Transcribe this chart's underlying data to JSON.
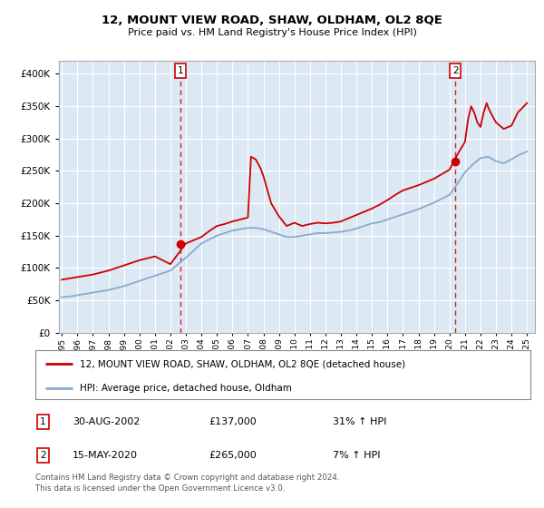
{
  "title": "12, MOUNT VIEW ROAD, SHAW, OLDHAM, OL2 8QE",
  "subtitle": "Price paid vs. HM Land Registry's House Price Index (HPI)",
  "property_line_color": "#cc0000",
  "hpi_line_color": "#88aacc",
  "plot_bg_color": "#dce9f5",
  "ylim": [
    0,
    420000
  ],
  "yticks": [
    0,
    50000,
    100000,
    150000,
    200000,
    250000,
    300000,
    350000,
    400000
  ],
  "sale1_date": "30-AUG-2002",
  "sale1_price": 137000,
  "sale1_hpi_change": "31% ↑ HPI",
  "sale1_x": 2002.66,
  "sale2_date": "15-MAY-2020",
  "sale2_price": 265000,
  "sale2_hpi_change": "7% ↑ HPI",
  "sale2_x": 2020.37,
  "legend_line1": "12, MOUNT VIEW ROAD, SHAW, OLDHAM, OL2 8QE (detached house)",
  "legend_line2": "HPI: Average price, detached house, Oldham",
  "footnote": "Contains HM Land Registry data © Crown copyright and database right 2024.\nThis data is licensed under the Open Government Licence v3.0.",
  "hpi_years": [
    1995,
    1995.5,
    1996,
    1996.5,
    1997,
    1997.5,
    1998,
    1998.5,
    1999,
    1999.5,
    2000,
    2000.5,
    2001,
    2001.5,
    2002,
    2002.5,
    2003,
    2003.5,
    2004,
    2004.5,
    2005,
    2005.5,
    2006,
    2006.5,
    2007,
    2007.5,
    2008,
    2008.5,
    2009,
    2009.5,
    2010,
    2010.5,
    2011,
    2011.5,
    2012,
    2012.5,
    2013,
    2013.5,
    2014,
    2014.5,
    2015,
    2015.5,
    2016,
    2016.5,
    2017,
    2017.5,
    2018,
    2018.5,
    2019,
    2019.5,
    2020,
    2020.5,
    2021,
    2021.5,
    2022,
    2022.5,
    2023,
    2023.5,
    2024,
    2024.5,
    2025
  ],
  "hpi_values": [
    55000,
    56000,
    58000,
    60000,
    62000,
    64000,
    66000,
    69000,
    72000,
    76000,
    80000,
    84000,
    88000,
    92000,
    96000,
    106000,
    116000,
    127000,
    138000,
    144000,
    150000,
    154000,
    158000,
    160000,
    162000,
    162000,
    160000,
    156000,
    152000,
    148000,
    148000,
    150000,
    152000,
    154000,
    154000,
    155000,
    156000,
    158000,
    161000,
    165000,
    169000,
    171000,
    175000,
    179000,
    183000,
    187000,
    191000,
    196000,
    201000,
    207000,
    213000,
    230000,
    248000,
    260000,
    270000,
    272000,
    265000,
    262000,
    268000,
    275000,
    280000
  ],
  "property_years": [
    1995,
    1995.5,
    1996,
    1996.5,
    1997,
    1997.5,
    1998,
    1998.5,
    1999,
    1999.5,
    2000,
    2000.5,
    2001,
    2001.5,
    2002,
    2002.5,
    2003,
    2003.5,
    2004,
    2004.5,
    2005,
    2005.5,
    2006,
    2006.5,
    2007,
    2007.2,
    2007.5,
    2007.8,
    2008,
    2008.5,
    2009,
    2009.5,
    2010,
    2010.5,
    2011,
    2011.5,
    2012,
    2012.5,
    2013,
    2013.5,
    2014,
    2014.5,
    2015,
    2015.5,
    2016,
    2016.5,
    2017,
    2017.5,
    2018,
    2018.5,
    2019,
    2019.5,
    2020,
    2020.5,
    2021,
    2021.2,
    2021.4,
    2021.6,
    2021.8,
    2022,
    2022.2,
    2022.4,
    2022.5,
    2022.7,
    2023,
    2023.5,
    2024,
    2024.2,
    2024.4,
    2024.6,
    2024.8,
    2025
  ],
  "property_values": [
    82000,
    84000,
    86000,
    88000,
    90000,
    93000,
    96000,
    100000,
    104000,
    108000,
    112000,
    115000,
    118000,
    112000,
    106000,
    122000,
    138000,
    143000,
    148000,
    157000,
    165000,
    168000,
    172000,
    175000,
    178000,
    272000,
    268000,
    255000,
    242000,
    200000,
    180000,
    165000,
    170000,
    165000,
    168000,
    170000,
    169000,
    170000,
    172000,
    177000,
    182000,
    187000,
    192000,
    198000,
    205000,
    213000,
    220000,
    224000,
    228000,
    233000,
    238000,
    245000,
    252000,
    275000,
    295000,
    330000,
    350000,
    340000,
    325000,
    318000,
    340000,
    355000,
    348000,
    338000,
    325000,
    315000,
    320000,
    330000,
    340000,
    345000,
    350000,
    355000
  ],
  "xmin": 1994.8,
  "xmax": 2025.5
}
